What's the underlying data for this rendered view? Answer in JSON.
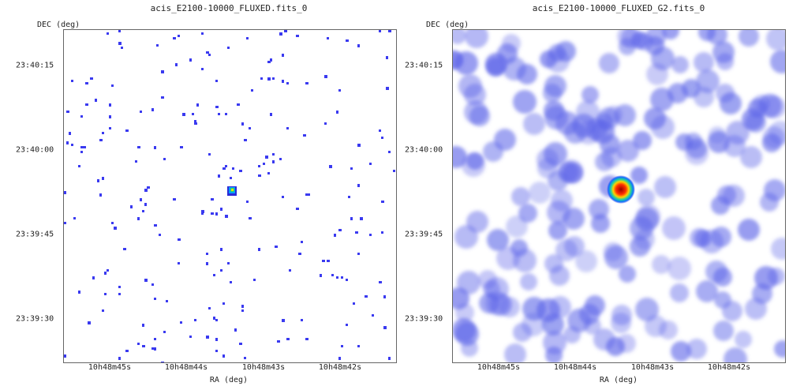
{
  "panels": [
    {
      "title": "acis_E2100-10000_FLUXED.fits_0",
      "ylabel": "DEC (deg)",
      "xlabel": "RA (deg)",
      "yticks": [
        "23:40:15",
        "23:40:00",
        "23:39:45",
        "23:39:30"
      ],
      "xticks": [
        "10h48m45s",
        "10h48m44s",
        "10h48m43s",
        "10h48m42s"
      ],
      "style": "sparse"
    },
    {
      "title": "acis_E2100-10000_FLUXED_G2.fits_0",
      "ylabel": "DEC (deg)",
      "xlabel": "RA (deg)",
      "yticks": [
        "23:40:15",
        "23:40:00",
        "23:39:45",
        "23:39:30"
      ],
      "xticks": [
        "10h48m45s",
        "10h48m44s",
        "10h48m43s",
        "10h48m42s"
      ],
      "style": "smoothed"
    }
  ],
  "colors": {
    "pixel": "#3a3af0",
    "smooth": "#5a62e8",
    "source_peak": "#b00000"
  }
}
